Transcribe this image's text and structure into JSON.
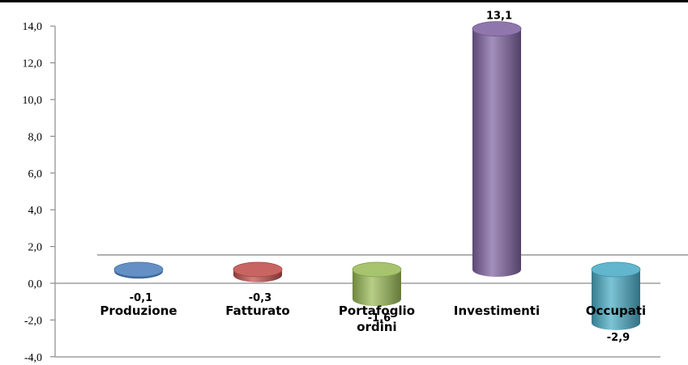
{
  "chart_data": {
    "type": "bar",
    "categories": [
      [
        "Produzione"
      ],
      [
        "Fatturato"
      ],
      [
        "Portafoglio",
        "ordini"
      ],
      [
        "Investimenti"
      ],
      [
        "Occupati"
      ]
    ],
    "values": [
      -0.1,
      -0.3,
      -1.6,
      13.1,
      -2.9
    ],
    "value_labels": [
      "-0,1",
      "-0,3",
      "-1,6",
      "13,1",
      "-2,9"
    ],
    "yticks": [
      "14,0",
      "12,0",
      "10,0",
      "8,0",
      "6,0",
      "4,0",
      "2,0",
      "0,0",
      "-2,0",
      "-4,0"
    ],
    "ytick_values": [
      14,
      12,
      10,
      8,
      6,
      4,
      2,
      0,
      -2,
      -4
    ],
    "ylim": [
      -4,
      14
    ],
    "grid": false,
    "legend": "none",
    "colors": [
      "#4f81bd",
      "#c0504d",
      "#9bbb59",
      "#8064a2",
      "#4bacc6"
    ],
    "title": "",
    "xlabel": "",
    "ylabel": ""
  }
}
